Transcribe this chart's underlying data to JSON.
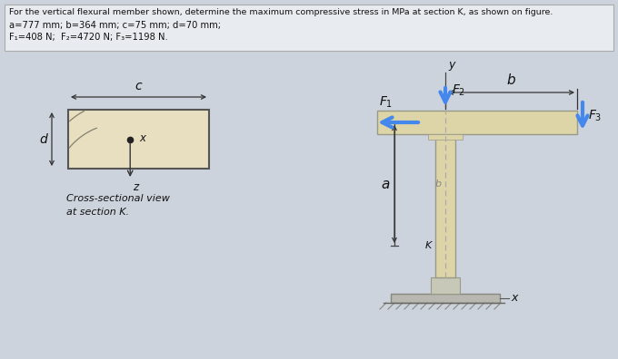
{
  "bg_color": "#cdd3dc",
  "header_bg": "#e8ecf0",
  "title_line1": "For the vertical flexural member shown, determine the maximum compressive stress in MPa at section K, as shown on figure.",
  "title_line2": "a=777 mm; b=364 mm; c=75 mm; d=70 mm;",
  "title_line3": "F₁=408 N;  F₂=4720 N; F₃=1198 N.",
  "cross_section_label": "Cross-sectional view\nat section K.",
  "cross_rect_color": "#e8dfc0",
  "cross_rect_border": "#555555",
  "struct_beam_color": "#ddd5a8",
  "struct_beam_border": "#999988",
  "arrow_color": "#4488ee",
  "dim_line_color": "#333333",
  "text_color": "#111111"
}
